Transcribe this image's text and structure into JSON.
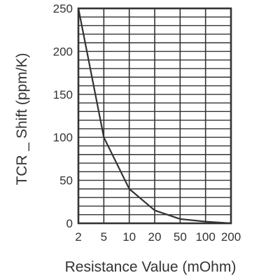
{
  "chart_data": {
    "type": "line",
    "xlabel": "Resistance Value (mOhm)",
    "ylabel": "TCR _ Shift (ppm/K)",
    "x_scale": "categorical",
    "x_ticks": [
      "2",
      "5",
      "10",
      "20",
      "50",
      "100",
      "200"
    ],
    "ylim": [
      0,
      250
    ],
    "y_ticks": [
      0,
      50,
      100,
      150,
      200,
      250
    ],
    "y_minor_step": 10,
    "grid": true,
    "series": [
      {
        "x": [
          "2",
          "5",
          "10",
          "20",
          "50",
          "100",
          "200"
        ],
        "values": [
          250,
          100,
          40,
          15,
          5,
          2,
          0
        ]
      }
    ],
    "colors": {
      "line": "#333333",
      "grid": "#333333",
      "text": "#333333"
    }
  }
}
